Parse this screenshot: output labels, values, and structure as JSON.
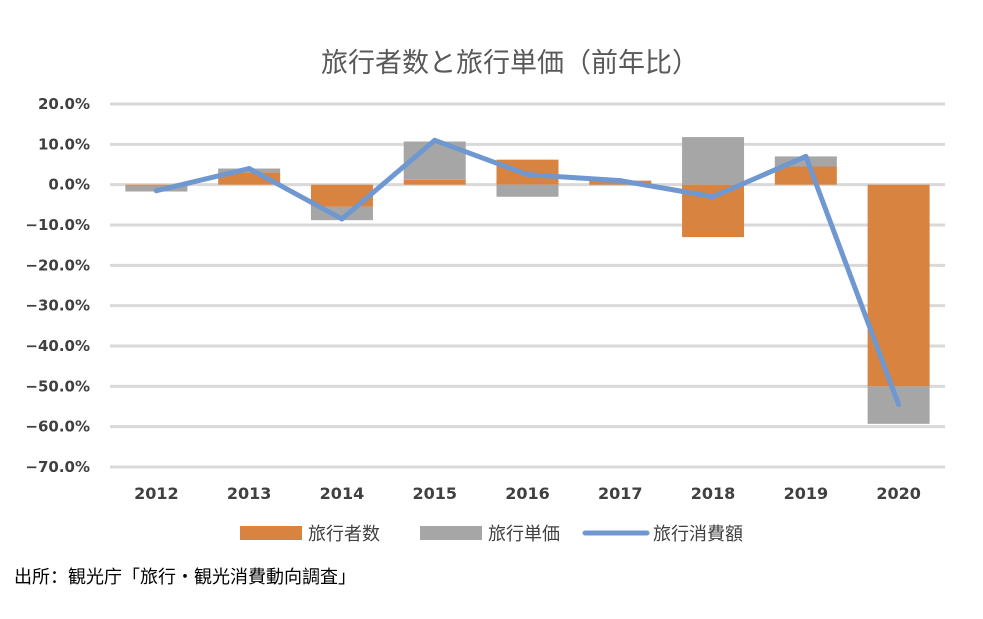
{
  "chart_data": {
    "type": "bar",
    "title": "旅行者数と旅行単価（前年比）",
    "categories": [
      "2012",
      "2013",
      "2014",
      "2015",
      "2016",
      "2017",
      "2018",
      "2019",
      "2020"
    ],
    "yticks": [
      "20.0%",
      "10.0%",
      "0.0%",
      "−10.0%",
      "−20.0%",
      "−30.0%",
      "−40.0%",
      "−50.0%",
      "−60.0%",
      "−70.0%"
    ],
    "ylim": [
      -70,
      20
    ],
    "grid": true,
    "legend_position": "bottom",
    "series": [
      {
        "name": "旅行者数",
        "type": "bar",
        "stacked": true,
        "color": "#d8833f",
        "values": [
          -0.2,
          3.0,
          -5.5,
          1.2,
          6.2,
          1.0,
          -13.0,
          4.5,
          -50.0
        ]
      },
      {
        "name": "旅行単価",
        "type": "bar",
        "stacked": true,
        "color": "#a6a6a6",
        "values": [
          -1.5,
          1.0,
          -3.3,
          9.5,
          -3.0,
          -0.1,
          11.8,
          2.5,
          -9.3
        ]
      },
      {
        "name": "旅行消費額",
        "type": "line",
        "color": "#6f98d0",
        "values": [
          -1.5,
          4.0,
          -8.5,
          11.0,
          2.5,
          1.0,
          -3.0,
          7.0,
          -54.5
        ]
      }
    ]
  },
  "source_note": "出所：観光庁「旅行・観光消費動向調査」"
}
